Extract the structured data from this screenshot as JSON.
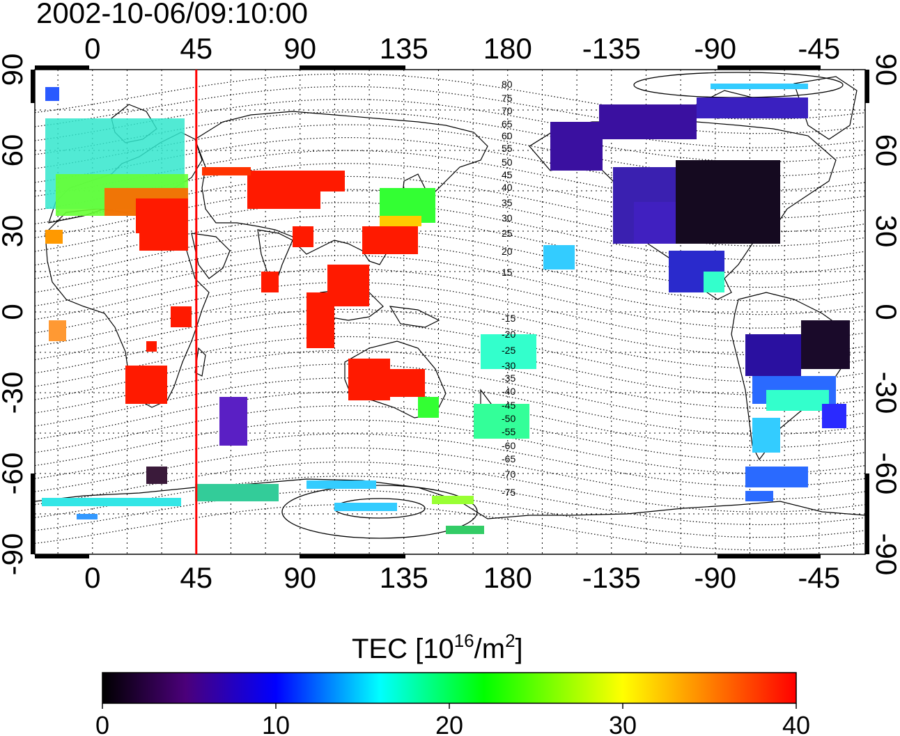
{
  "title": "2002-10-06/09:10:00",
  "lon_ticks_top": [
    "0",
    "45",
    "90",
    "135",
    "180",
    "-135",
    "-90",
    "-45"
  ],
  "lon_ticks_bottom": [
    "0",
    "45",
    "90",
    "135",
    "180",
    "-135",
    "-90",
    "-45"
  ],
  "lat_ticks_left": [
    "90",
    "60",
    "30",
    "0",
    "-30",
    "-60",
    "-90"
  ],
  "lat_ticks_right": [
    "90",
    "60",
    "30",
    "0",
    "-30",
    "-60",
    "-90"
  ],
  "contour_labels": [
    "80",
    "75",
    "70",
    "65",
    "60",
    "55",
    "50",
    "45",
    "40",
    "35",
    "30",
    "25",
    "20",
    "15",
    "-15",
    "-20",
    "-25",
    "-30",
    "-35",
    "-40",
    "-45",
    "-50",
    "-55",
    "-60",
    "-65",
    "-70",
    "-75"
  ],
  "colorbar": {
    "label_main": "TEC  [10",
    "label_sup1": "16",
    "label_mid": "/m",
    "label_sup2": "2",
    "label_end": "]",
    "ticks": [
      "0",
      "10",
      "20",
      "30",
      "40"
    ],
    "min": 0,
    "max": 40,
    "colors": [
      "#000000",
      "#4b007a",
      "#0000ff",
      "#00ffff",
      "#00ff00",
      "#ffff00",
      "#ff0000"
    ]
  },
  "chart_data": {
    "type": "map",
    "xlabel": "",
    "ylabel": "",
    "lon_range": [
      -25,
      335
    ],
    "lat_range": [
      -90,
      90
    ],
    "marker_longitude": 45,
    "grid": true
  }
}
